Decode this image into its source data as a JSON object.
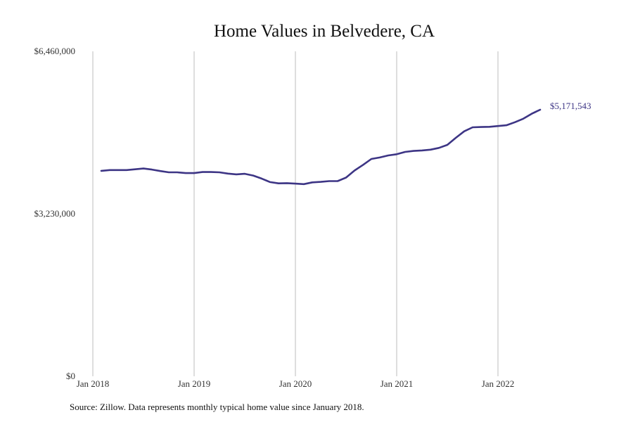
{
  "chart_data": {
    "type": "line",
    "title": "Home Values in Belvedere, CA",
    "xlabel": "",
    "ylabel": "",
    "ylim": [
      0,
      6460000
    ],
    "y_tick_labels": [
      "$0",
      "$3,230,000",
      "$6,460,000"
    ],
    "y_tick_values": [
      0,
      3230000,
      6460000
    ],
    "x_tick_labels": [
      "Jan 2018",
      "Jan 2019",
      "Jan 2020",
      "Jan 2021",
      "Jan 2022"
    ],
    "x_tick_dates": [
      "2018-01",
      "2019-01",
      "2020-01",
      "2021-01",
      "2022-01"
    ],
    "x_range": [
      "2018-01",
      "2022-12"
    ],
    "grid": "vertical",
    "legend": "none",
    "line_color": "#3d3585",
    "end_label": "$5,171,543",
    "series": [
      {
        "x": [
          "2018-02",
          "2018-03",
          "2018-04",
          "2018-05",
          "2018-06",
          "2018-07",
          "2018-08",
          "2018-09",
          "2018-10",
          "2018-11",
          "2018-12",
          "2019-01",
          "2019-02",
          "2019-03",
          "2019-04",
          "2019-05",
          "2019-06",
          "2019-07",
          "2019-08",
          "2019-09",
          "2019-10",
          "2019-11",
          "2019-12",
          "2020-01",
          "2020-02",
          "2020-03",
          "2020-04",
          "2020-05",
          "2020-06",
          "2020-07",
          "2020-08",
          "2020-09",
          "2020-10",
          "2020-11",
          "2020-12",
          "2021-01",
          "2021-02",
          "2021-03",
          "2021-04",
          "2021-05",
          "2021-06",
          "2021-07",
          "2021-08",
          "2021-09",
          "2021-10",
          "2021-11",
          "2021-12",
          "2022-01",
          "2022-02",
          "2022-03",
          "2022-04",
          "2022-05",
          "2022-06"
        ],
        "values": [
          4085000,
          4100000,
          4100000,
          4100000,
          4115000,
          4130000,
          4110000,
          4080000,
          4055000,
          4055000,
          4040000,
          4040000,
          4060000,
          4060000,
          4055000,
          4030000,
          4015000,
          4025000,
          3990000,
          3930000,
          3860000,
          3835000,
          3840000,
          3830000,
          3820000,
          3855000,
          3865000,
          3880000,
          3880000,
          3950000,
          4090000,
          4200000,
          4320000,
          4350000,
          4390000,
          4415000,
          4460000,
          4480000,
          4490000,
          4505000,
          4540000,
          4600000,
          4740000,
          4870000,
          4950000,
          4955000,
          4960000,
          4975000,
          4990000,
          5050000,
          5120000,
          5220000,
          5300000
        ]
      }
    ]
  },
  "source_text": "Source: Zillow. Data represents monthly typical home value since January 2018."
}
